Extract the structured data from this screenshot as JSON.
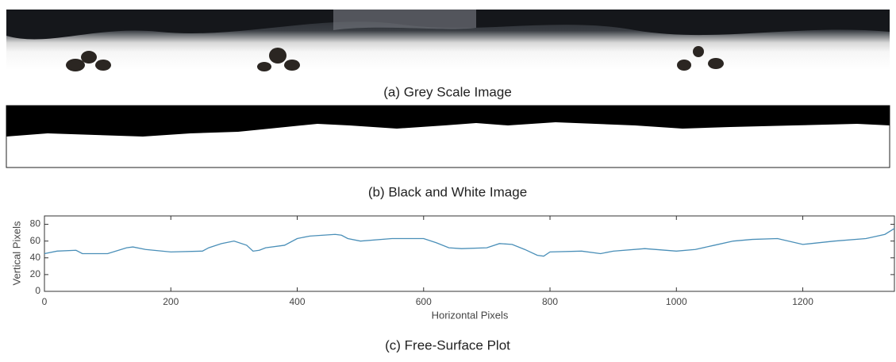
{
  "figures": [
    {
      "caption": "(a) Grey Scale Image"
    },
    {
      "caption": "(b) Black and White Image"
    },
    {
      "caption": "(c) Free-Surface Plot"
    }
  ],
  "chart_data": {
    "type": "line",
    "x_label": "Horizontal Pixels",
    "y_label": "Vertical Pixels",
    "x": [
      0,
      20,
      50,
      60,
      100,
      130,
      140,
      160,
      200,
      250,
      260,
      280,
      300,
      320,
      330,
      340,
      350,
      380,
      400,
      420,
      460,
      470,
      480,
      500,
      550,
      600,
      620,
      640,
      660,
      700,
      720,
      740,
      760,
      780,
      790,
      800,
      850,
      880,
      900,
      950,
      1000,
      1030,
      1060,
      1090,
      1120,
      1160,
      1200,
      1250,
      1300,
      1330,
      1345
    ],
    "series": [
      {
        "color": "#4a8fb8",
        "values": [
          45,
          48,
          49,
          45,
          45,
          52,
          53,
          50,
          47,
          48,
          52,
          57,
          60,
          55,
          48,
          49,
          52,
          55,
          63,
          66,
          68,
          67,
          63,
          60,
          63,
          63,
          58,
          52,
          51,
          52,
          57,
          56,
          50,
          43,
          42,
          47,
          48,
          45,
          48,
          51,
          48,
          50,
          55,
          60,
          62,
          63,
          56,
          60,
          63,
          68,
          75
        ]
      }
    ],
    "xlim": [
      0,
      1345
    ],
    "ylim": [
      0,
      90
    ],
    "xticks": [
      0,
      200,
      400,
      600,
      800,
      1000,
      1200
    ],
    "yticks": [
      0,
      20,
      40,
      60,
      80
    ],
    "grid": false
  }
}
